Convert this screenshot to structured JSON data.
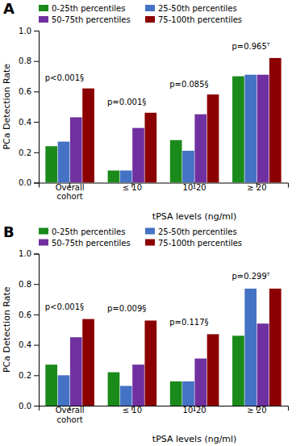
{
  "chart_data": [
    {
      "type": "bar",
      "title": "A",
      "categories": [
        "Overall\ncohort",
        "≤ 10",
        "10-20",
        "≥ 20"
      ],
      "series": [
        {
          "name": "0-25th percentiles",
          "color": "#1a8a1a",
          "values": [
            0.24,
            0.08,
            0.28,
            0.7
          ]
        },
        {
          "name": "25-50th percentiles",
          "color": "#4472c4",
          "values": [
            0.27,
            0.08,
            0.21,
            0.71
          ]
        },
        {
          "name": "50-75th percentiles",
          "color": "#7030a0",
          "values": [
            0.43,
            0.36,
            0.45,
            0.71
          ]
        },
        {
          "name": "75-100th percentiles",
          "color": "#8b0000",
          "values": [
            0.62,
            0.46,
            0.58,
            0.82
          ]
        }
      ],
      "ylabel": "PCa Detection Rate",
      "xlabel": "tPSA levels (ng/ml)",
      "ylim": [
        0.0,
        1.0
      ],
      "yticks": [
        {
          "value": 0.0,
          "label": "0.0"
        },
        0.2,
        0.4,
        0.6,
        0.8,
        {
          "value": 1.0,
          "label": "1.0"
        }
      ],
      "annotations": [
        {
          "text": "p<0.001§",
          "category": "Overall\ncohort",
          "y": 0.66
        },
        {
          "text": "p=0.001§",
          "category": "≤ 10",
          "y": 0.5
        },
        {
          "text": "p=0.085§",
          "category": "10-20",
          "y": 0.62
        },
        {
          "text": "p=0.965ᵀ",
          "category": "≥ 20",
          "y": 0.87
        }
      ],
      "legend": "upper left"
    },
    {
      "type": "bar",
      "title": "B",
      "categories": [
        "Overall\ncohort",
        "≤ 10",
        "10-20",
        "≥ 20"
      ],
      "series": [
        {
          "name": "0-25th percentiles",
          "color": "#1a8a1a",
          "values": [
            0.27,
            0.22,
            0.16,
            0.46
          ]
        },
        {
          "name": "25-50th percentiles",
          "color": "#4472c4",
          "values": [
            0.2,
            0.13,
            0.16,
            0.77
          ]
        },
        {
          "name": "50-75th percentiles",
          "color": "#7030a0",
          "values": [
            0.45,
            0.27,
            0.31,
            0.54
          ]
        },
        {
          "name": "75-100th percentiles",
          "color": "#8b0000",
          "values": [
            0.57,
            0.56,
            0.47,
            0.77
          ]
        }
      ],
      "ylabel": "PCa Detection Rate",
      "xlabel": "tPSA levels (ng/ml)",
      "ylim": [
        0.0,
        1.0
      ],
      "yticks": [
        {
          "value": 0.0,
          "label": "0.0"
        },
        0.2,
        0.4,
        0.6,
        0.8,
        {
          "value": 1.0,
          "label": "1.0"
        }
      ],
      "annotations": [
        {
          "text": "p<0.001§",
          "category": "Overall\ncohort",
          "y": 0.62
        },
        {
          "text": "p=0.009§",
          "category": "≤ 10",
          "y": 0.61
        },
        {
          "text": "p=0.117§",
          "category": "10-20",
          "y": 0.52
        },
        {
          "text": "p=0.299ᵀ",
          "category": "≥ 20",
          "y": 0.82
        }
      ],
      "legend": "upper left"
    }
  ]
}
